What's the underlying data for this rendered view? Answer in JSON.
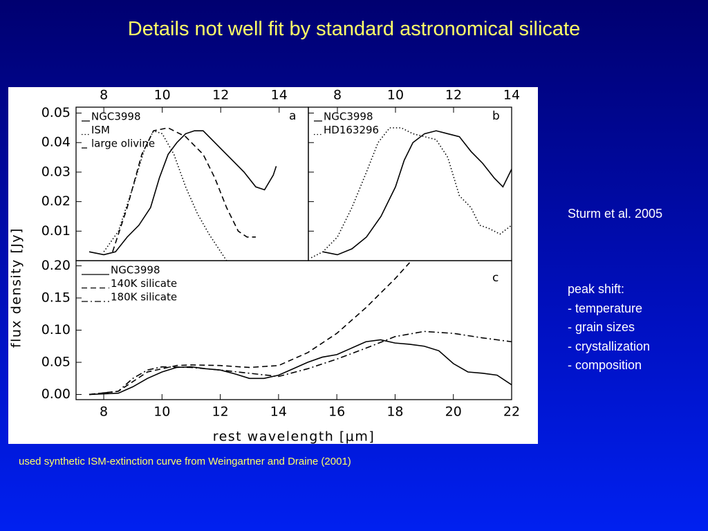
{
  "slide": {
    "title": "Details not well fit by standard astronomical silicate",
    "reference": "Sturm et al. 2005",
    "notes_heading": "peak shift:",
    "notes": [
      "- temperature",
      "- grain sizes",
      "- crystallization",
      "- composition"
    ],
    "footnote": "used synthetic ISM-extinction curve from Weingartner and Draine (2001)"
  },
  "chart_data": [
    {
      "type": "line",
      "panel_label": "a",
      "ylabel": "flux density [Jy]",
      "xlim": [
        7.05,
        15
      ],
      "xticks": [
        8,
        10,
        12,
        14
      ],
      "xtick_position": "top",
      "ylim": [
        0,
        0.052
      ],
      "yticks": [
        0.01,
        0.02,
        0.03,
        0.04,
        0.05
      ],
      "ytick_labels": true,
      "legend": "top-left",
      "series": [
        {
          "name": "NGC3998",
          "color": "#000000",
          "style": "solid",
          "x": [
            7.5,
            8,
            8.4,
            8.8,
            9.2,
            9.6,
            9.9,
            10.2,
            10.5,
            10.8,
            11.1,
            11.4,
            11.7,
            12,
            12.4,
            12.8,
            13.2,
            13.5,
            13.8,
            13.9
          ],
          "values": [
            0.003,
            0.002,
            0.003,
            0.008,
            0.012,
            0.018,
            0.028,
            0.036,
            0.04,
            0.043,
            0.044,
            0.044,
            0.041,
            0.038,
            0.034,
            0.03,
            0.025,
            0.024,
            0.029,
            0.032
          ]
        },
        {
          "name": "ISM",
          "color": "#000000",
          "style": "dotted",
          "x": [
            8,
            8.5,
            9,
            9.4,
            9.7,
            10,
            10.4,
            10.8,
            11.2,
            11.6,
            12,
            12.2
          ],
          "values": [
            0.003,
            0.01,
            0.025,
            0.038,
            0.044,
            0.043,
            0.036,
            0.025,
            0.016,
            0.009,
            0.003,
            0
          ]
        },
        {
          "name": "large olivine",
          "color": "#000000",
          "style": "dashed",
          "x": [
            8.3,
            8.8,
            9.3,
            9.7,
            10.2,
            10.8,
            11.4,
            11.8,
            12.2,
            12.6,
            12.9,
            13.2
          ],
          "values": [
            0.003,
            0.018,
            0.036,
            0.044,
            0.045,
            0.042,
            0.036,
            0.028,
            0.018,
            0.01,
            0.008,
            0.008
          ]
        }
      ]
    },
    {
      "type": "line",
      "panel_label": "b",
      "xlim": [
        7,
        14
      ],
      "xticks": [
        8,
        10,
        12,
        14
      ],
      "xtick_position": "top",
      "ylim": [
        0,
        0.052
      ],
      "yticks": [
        0.01,
        0.02,
        0.03,
        0.04,
        0.05
      ],
      "ytick_labels": false,
      "legend": "top-left",
      "series": [
        {
          "name": "NGC3998",
          "color": "#000000",
          "style": "solid",
          "x": [
            7.5,
            8,
            8.5,
            9,
            9.5,
            10,
            10.3,
            10.6,
            11,
            11.4,
            11.8,
            12.2,
            12.6,
            13,
            13.4,
            13.7,
            14
          ],
          "values": [
            0.003,
            0.002,
            0.004,
            0.008,
            0.015,
            0.025,
            0.034,
            0.04,
            0.043,
            0.044,
            0.043,
            0.042,
            0.037,
            0.033,
            0.028,
            0.025,
            0.031
          ]
        },
        {
          "name": "HD163296",
          "color": "#000000",
          "style": "dotted",
          "x": [
            7.1,
            7.5,
            8,
            8.5,
            9,
            9.4,
            9.8,
            10.2,
            10.6,
            11,
            11.4,
            11.8,
            12.2,
            12.6,
            12.9,
            13.2,
            13.6,
            14
          ],
          "values": [
            0.001,
            0.003,
            0.008,
            0.018,
            0.03,
            0.04,
            0.045,
            0.045,
            0.043,
            0.042,
            0.041,
            0.035,
            0.022,
            0.018,
            0.012,
            0.011,
            0.009,
            0.012
          ]
        }
      ]
    },
    {
      "type": "line",
      "panel_label": "c",
      "xlabel": "rest wavelength [μm]",
      "xlim": [
        7.05,
        22
      ],
      "xticks": [
        8,
        10,
        12,
        14,
        16,
        18,
        20,
        22
      ],
      "xtick_position": "bottom",
      "ylim": [
        -0.008,
        0.208
      ],
      "yticks": [
        {
          "value": 0,
          "label": "0.00"
        },
        0.05,
        {
          "value": 0.1,
          "label": "0.10"
        },
        0.15,
        {
          "value": 0.2,
          "label": "0.20"
        }
      ],
      "ytick_labels": true,
      "legend": "top-left",
      "series": [
        {
          "name": "NGC3998",
          "color": "#000000",
          "style": "solid",
          "x": [
            7.5,
            8.5,
            9,
            9.5,
            10,
            10.5,
            11,
            11.5,
            12,
            12.5,
            13,
            13.5,
            14,
            14.5,
            15,
            15.5,
            16,
            16.5,
            17,
            17.5,
            18,
            18.5,
            19,
            19.5,
            20,
            20.5,
            21,
            21.5,
            22
          ],
          "values": [
            0,
            0.002,
            0.012,
            0.025,
            0.035,
            0.042,
            0.043,
            0.04,
            0.038,
            0.032,
            0.025,
            0.025,
            0.03,
            0.04,
            0.05,
            0.058,
            0.062,
            0.072,
            0.082,
            0.085,
            0.08,
            0.078,
            0.075,
            0.068,
            0.048,
            0.035,
            0.033,
            0.03,
            0.015
          ]
        },
        {
          "name": "140K silicate",
          "color": "#000000",
          "style": "dashed",
          "x": [
            7.5,
            8.5,
            9,
            9.5,
            10,
            10.5,
            11,
            12,
            13,
            14,
            15,
            16,
            17,
            18,
            18.5
          ],
          "values": [
            0,
            0.005,
            0.02,
            0.035,
            0.04,
            0.045,
            0.046,
            0.045,
            0.042,
            0.045,
            0.065,
            0.095,
            0.135,
            0.18,
            0.205
          ]
        },
        {
          "name": "180K silicate",
          "color": "#000000",
          "style": "dashdot",
          "x": [
            7.5,
            8.5,
            9,
            9.5,
            10,
            11,
            12,
            13,
            14,
            15,
            16,
            17,
            18,
            19,
            20,
            21,
            22
          ],
          "values": [
            0,
            0.005,
            0.025,
            0.038,
            0.043,
            0.042,
            0.038,
            0.033,
            0.028,
            0.04,
            0.055,
            0.072,
            0.09,
            0.098,
            0.095,
            0.088,
            0.082
          ]
        }
      ]
    }
  ]
}
